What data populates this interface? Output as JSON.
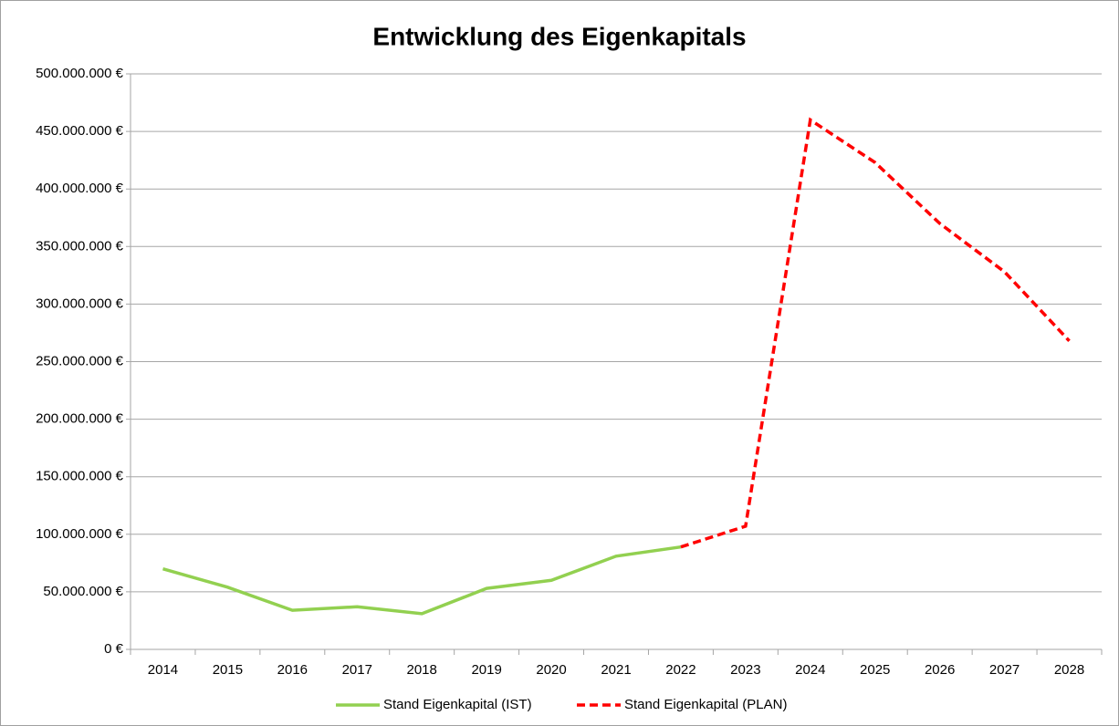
{
  "chart_data": {
    "type": "line",
    "title": "Entwicklung des Eigenkapitals",
    "categories": [
      "2014",
      "2015",
      "2016",
      "2017",
      "2018",
      "2019",
      "2020",
      "2021",
      "2022",
      "2023",
      "2024",
      "2025",
      "2026",
      "2027",
      "2028"
    ],
    "series": [
      {
        "name": "Stand Eigenkapital (IST)",
        "color": "#92d050",
        "dash": false,
        "values": [
          70000000,
          54000000,
          34000000,
          37000000,
          31000000,
          53000000,
          60000000,
          81000000,
          89000000,
          null,
          null,
          null,
          null,
          null,
          null
        ]
      },
      {
        "name": "Stand Eigenkapital (PLAN)",
        "color": "#ff0000",
        "dash": true,
        "values": [
          null,
          null,
          null,
          null,
          null,
          null,
          null,
          null,
          89000000,
          107000000,
          460000000,
          423000000,
          370000000,
          328000000,
          268000000
        ]
      }
    ],
    "ylim": [
      0,
      500000000
    ],
    "yticks": [
      {
        "value": 0,
        "label": "0 €"
      },
      {
        "value": 50000000,
        "label": "50.000.000 €"
      },
      {
        "value": 100000000,
        "label": "100.000.000 €"
      },
      {
        "value": 150000000,
        "label": "150.000.000 €"
      },
      {
        "value": 200000000,
        "label": "200.000.000 €"
      },
      {
        "value": 250000000,
        "label": "250.000.000 €"
      },
      {
        "value": 300000000,
        "label": "300.000.000 €"
      },
      {
        "value": 350000000,
        "label": "350.000.000 €"
      },
      {
        "value": 400000000,
        "label": "400.000.000 €"
      },
      {
        "value": 450000000,
        "label": "450.000.000 €"
      },
      {
        "value": 500000000,
        "label": "500.000.000 €"
      }
    ],
    "grid": true,
    "legend": "bottom"
  }
}
